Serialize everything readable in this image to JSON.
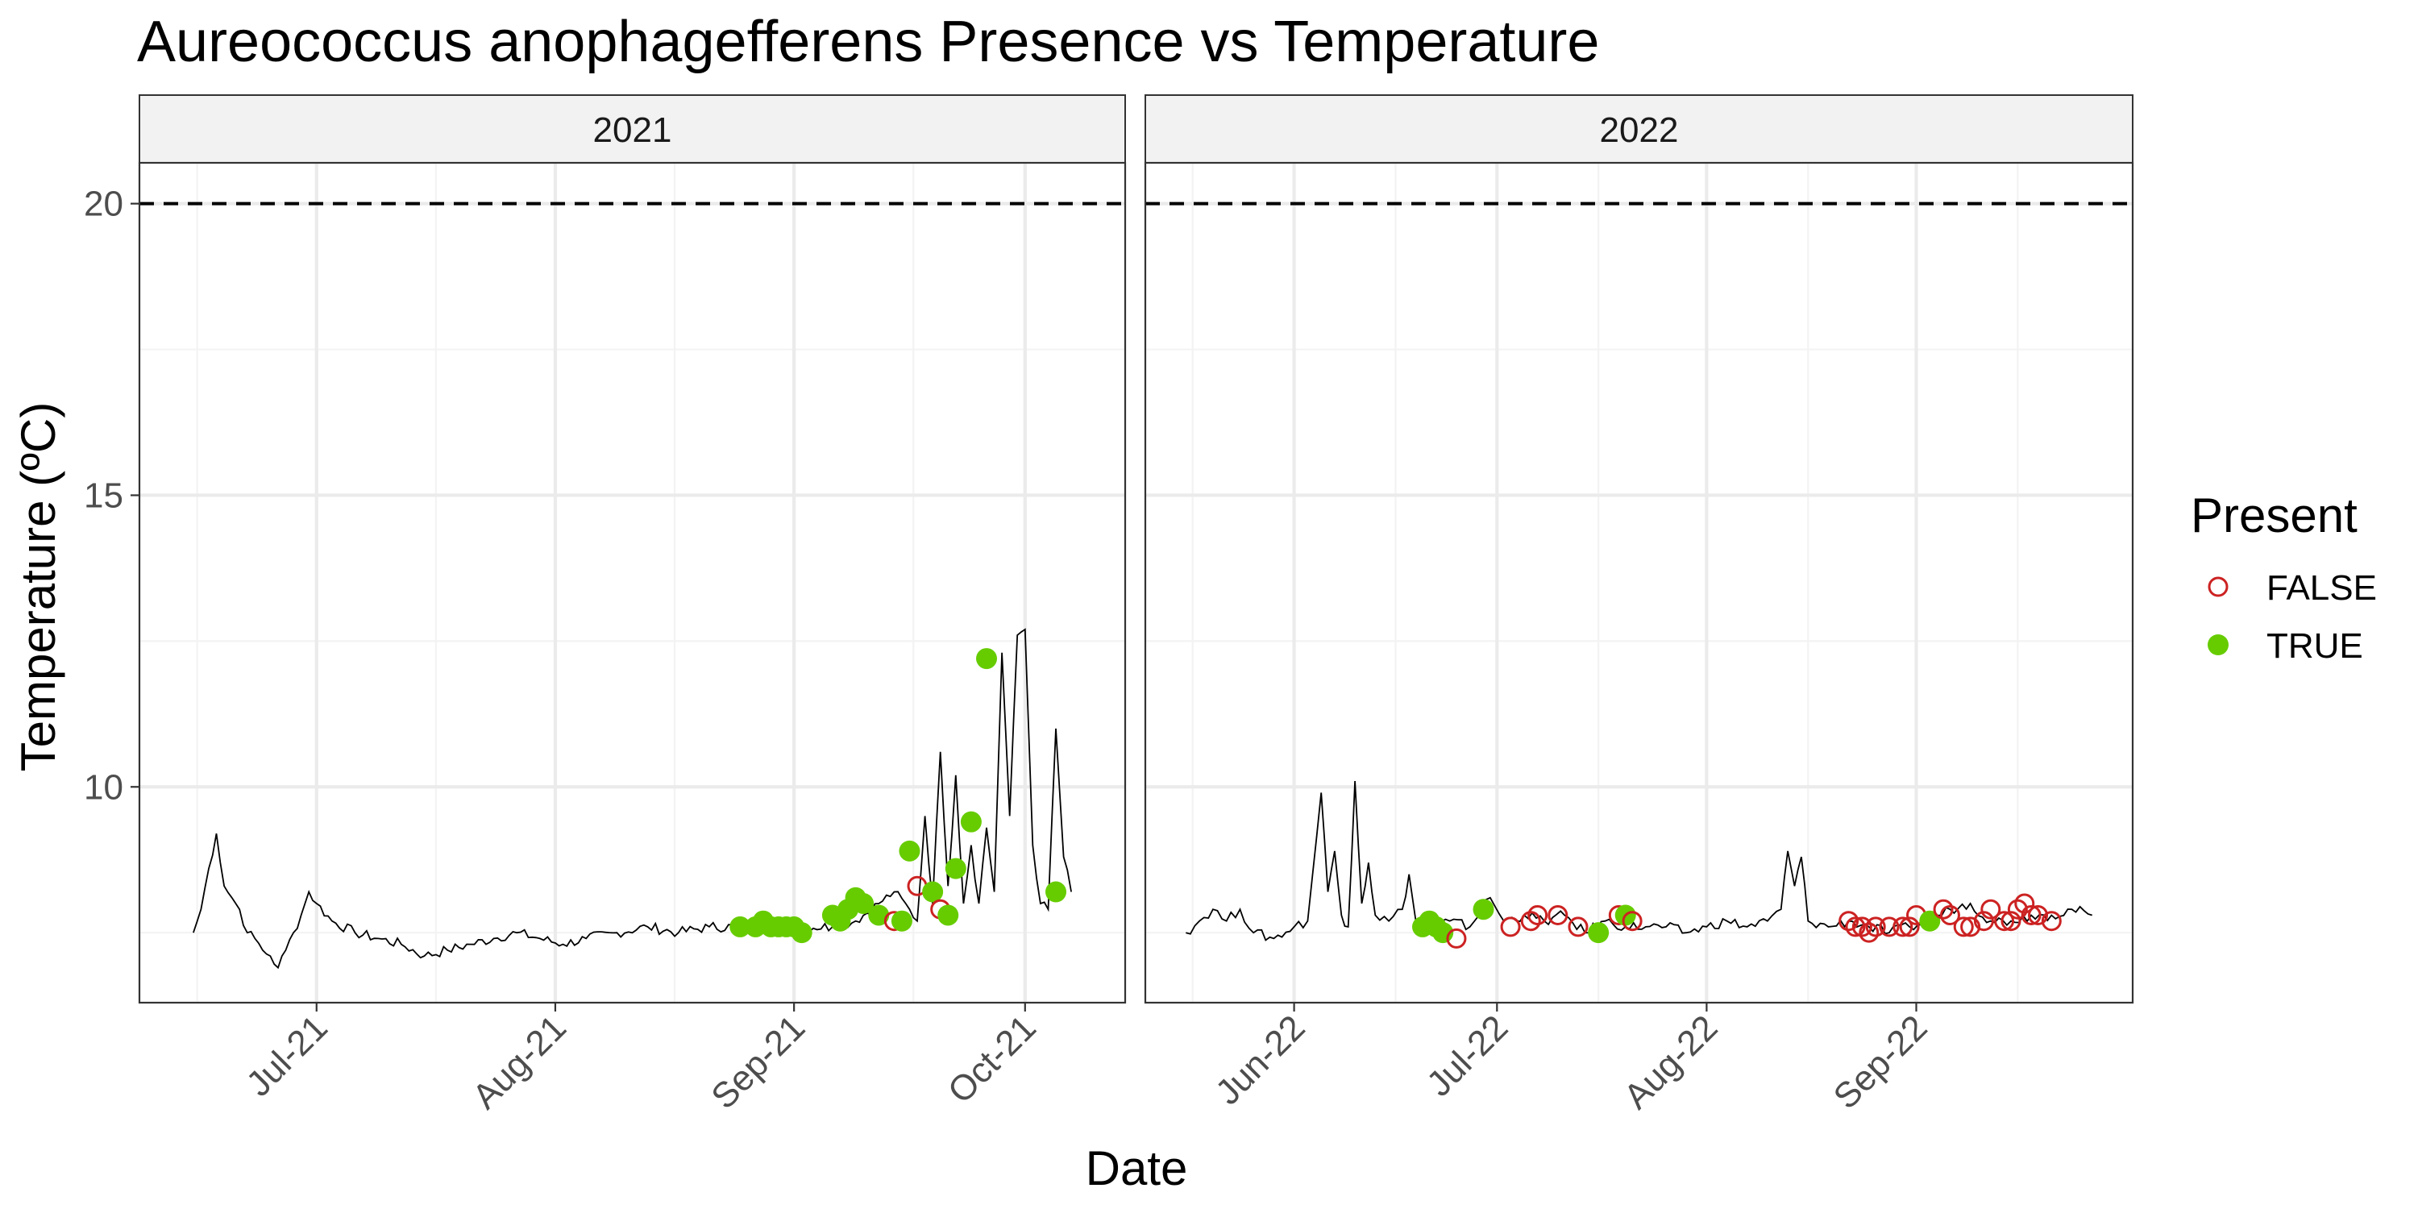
{
  "chart_data": {
    "type": "scatter",
    "title": "Aureococcus anophagefferens Presence vs Temperature",
    "xlabel": "Date",
    "ylabel": "Temperature (ºC)",
    "ylim": [
      6.3,
      20.7
    ],
    "y_ticks": [
      10,
      15,
      20
    ],
    "reference_line": {
      "y": 20,
      "style": "dashed"
    },
    "grid": true,
    "legend": {
      "title": "Present",
      "position": "right",
      "entries": [
        {
          "label": "FALSE",
          "color": "#cc2222",
          "marker": "open-circle"
        },
        {
          "label": "TRUE",
          "color": "#66cc00",
          "marker": "filled-circle"
        }
      ]
    },
    "colors": {
      "line": "#000000",
      "false": "#cc2222",
      "true": "#66cc00"
    },
    "panels": [
      {
        "strip": "2021",
        "xlim": [
          "2021-06-08",
          "2021-10-14"
        ],
        "x_ticks": [
          {
            "date": "2021-07-01",
            "label": "Jul-21"
          },
          {
            "date": "2021-08-01",
            "label": "Aug-21"
          },
          {
            "date": "2021-09-01",
            "label": "Sep-21"
          },
          {
            "date": "2021-10-01",
            "label": "Oct-21"
          }
        ],
        "temperature_line": [
          [
            "2021-06-15",
            7.5
          ],
          [
            "2021-06-16",
            7.9
          ],
          [
            "2021-06-17",
            8.6
          ],
          [
            "2021-06-18",
            9.2
          ],
          [
            "2021-06-19",
            8.3
          ],
          [
            "2021-06-20",
            8.1
          ],
          [
            "2021-06-21",
            7.9
          ],
          [
            "2021-06-22",
            7.5
          ],
          [
            "2021-06-23",
            7.4
          ],
          [
            "2021-06-24",
            7.2
          ],
          [
            "2021-06-25",
            7.1
          ],
          [
            "2021-06-26",
            6.9
          ],
          [
            "2021-06-27",
            7.2
          ],
          [
            "2021-06-28",
            7.5
          ],
          [
            "2021-06-29",
            7.8
          ],
          [
            "2021-06-30",
            8.2
          ],
          [
            "2021-07-01",
            8.0
          ],
          [
            "2021-07-03",
            7.7
          ],
          [
            "2021-07-06",
            7.5
          ],
          [
            "2021-07-09",
            7.4
          ],
          [
            "2021-07-12",
            7.3
          ],
          [
            "2021-07-15",
            7.1
          ],
          [
            "2021-07-18",
            7.2
          ],
          [
            "2021-07-21",
            7.3
          ],
          [
            "2021-07-24",
            7.4
          ],
          [
            "2021-07-27",
            7.5
          ],
          [
            "2021-07-30",
            7.4
          ],
          [
            "2021-08-02",
            7.3
          ],
          [
            "2021-08-05",
            7.4
          ],
          [
            "2021-08-09",
            7.5
          ],
          [
            "2021-08-13",
            7.6
          ],
          [
            "2021-08-17",
            7.5
          ],
          [
            "2021-08-21",
            7.6
          ],
          [
            "2021-08-25",
            7.6
          ],
          [
            "2021-08-29",
            7.6
          ],
          [
            "2021-09-02",
            7.6
          ],
          [
            "2021-09-06",
            7.6
          ],
          [
            "2021-09-09",
            7.7
          ],
          [
            "2021-09-12",
            8.0
          ],
          [
            "2021-09-14",
            8.2
          ],
          [
            "2021-09-16",
            7.9
          ],
          [
            "2021-09-17",
            7.7
          ],
          [
            "2021-09-18",
            9.5
          ],
          [
            "2021-09-19",
            8.0
          ],
          [
            "2021-09-20",
            10.6
          ],
          [
            "2021-09-21",
            8.3
          ],
          [
            "2021-09-22",
            10.2
          ],
          [
            "2021-09-23",
            8.0
          ],
          [
            "2021-09-24",
            9.0
          ],
          [
            "2021-09-25",
            8.0
          ],
          [
            "2021-09-26",
            9.3
          ],
          [
            "2021-09-27",
            8.2
          ],
          [
            "2021-09-28",
            12.3
          ],
          [
            "2021-09-29",
            9.5
          ],
          [
            "2021-09-30",
            12.6
          ],
          [
            "2021-10-01",
            12.7
          ],
          [
            "2021-10-02",
            9.0
          ],
          [
            "2021-10-03",
            8.0
          ],
          [
            "2021-10-04",
            7.9
          ],
          [
            "2021-10-05",
            11.0
          ],
          [
            "2021-10-06",
            8.8
          ],
          [
            "2021-10-07",
            8.2
          ]
        ],
        "points": [
          {
            "date": "2021-08-25",
            "temp": 7.6,
            "present": true
          },
          {
            "date": "2021-08-27",
            "temp": 7.6,
            "present": true
          },
          {
            "date": "2021-08-28",
            "temp": 7.7,
            "present": true
          },
          {
            "date": "2021-08-29",
            "temp": 7.6,
            "present": true
          },
          {
            "date": "2021-08-30",
            "temp": 7.6,
            "present": true
          },
          {
            "date": "2021-08-31",
            "temp": 7.6,
            "present": true
          },
          {
            "date": "2021-09-01",
            "temp": 7.6,
            "present": true
          },
          {
            "date": "2021-09-02",
            "temp": 7.5,
            "present": true
          },
          {
            "date": "2021-09-06",
            "temp": 7.8,
            "present": true
          },
          {
            "date": "2021-09-07",
            "temp": 7.7,
            "present": true
          },
          {
            "date": "2021-09-08",
            "temp": 7.9,
            "present": true
          },
          {
            "date": "2021-09-09",
            "temp": 8.1,
            "present": true
          },
          {
            "date": "2021-09-10",
            "temp": 8.0,
            "present": true
          },
          {
            "date": "2021-09-12",
            "temp": 7.8,
            "present": true
          },
          {
            "date": "2021-09-14",
            "temp": 7.7,
            "present": false
          },
          {
            "date": "2021-09-15",
            "temp": 7.7,
            "present": true
          },
          {
            "date": "2021-09-16",
            "temp": 8.9,
            "present": true
          },
          {
            "date": "2021-09-17",
            "temp": 8.3,
            "present": false
          },
          {
            "date": "2021-09-19",
            "temp": 8.2,
            "present": true
          },
          {
            "date": "2021-09-20",
            "temp": 7.9,
            "present": false
          },
          {
            "date": "2021-09-21",
            "temp": 7.8,
            "present": true
          },
          {
            "date": "2021-09-22",
            "temp": 8.6,
            "present": true
          },
          {
            "date": "2021-09-24",
            "temp": 9.4,
            "present": true
          },
          {
            "date": "2021-09-26",
            "temp": 12.2,
            "present": true
          },
          {
            "date": "2021-10-05",
            "temp": 8.2,
            "present": true
          }
        ]
      },
      {
        "strip": "2022",
        "xlim": [
          "2022-05-10",
          "2022-10-03"
        ],
        "x_ticks": [
          {
            "date": "2022-06-01",
            "label": "Jun-22"
          },
          {
            "date": "2022-07-01",
            "label": "Jul-22"
          },
          {
            "date": "2022-08-01",
            "label": "Aug-22"
          },
          {
            "date": "2022-09-01",
            "label": "Sep-22"
          }
        ],
        "temperature_line": [
          [
            "2022-05-16",
            7.5
          ],
          [
            "2022-05-18",
            7.7
          ],
          [
            "2022-05-20",
            7.9
          ],
          [
            "2022-05-22",
            7.7
          ],
          [
            "2022-05-24",
            7.9
          ],
          [
            "2022-05-26",
            7.5
          ],
          [
            "2022-05-29",
            7.4
          ],
          [
            "2022-06-01",
            7.6
          ],
          [
            "2022-06-03",
            7.7
          ],
          [
            "2022-06-05",
            9.9
          ],
          [
            "2022-06-06",
            8.2
          ],
          [
            "2022-06-07",
            8.9
          ],
          [
            "2022-06-08",
            7.8
          ],
          [
            "2022-06-09",
            7.6
          ],
          [
            "2022-06-10",
            10.1
          ],
          [
            "2022-06-11",
            8.0
          ],
          [
            "2022-06-12",
            8.7
          ],
          [
            "2022-06-13",
            7.8
          ],
          [
            "2022-06-15",
            7.7
          ],
          [
            "2022-06-17",
            7.9
          ],
          [
            "2022-06-18",
            8.5
          ],
          [
            "2022-06-19",
            7.7
          ],
          [
            "2022-06-21",
            7.6
          ],
          [
            "2022-06-24",
            7.7
          ],
          [
            "2022-06-27",
            7.6
          ],
          [
            "2022-06-30",
            8.1
          ],
          [
            "2022-07-02",
            7.7
          ],
          [
            "2022-07-05",
            7.8
          ],
          [
            "2022-07-08",
            7.7
          ],
          [
            "2022-07-11",
            7.8
          ],
          [
            "2022-07-14",
            7.5
          ],
          [
            "2022-07-17",
            7.7
          ],
          [
            "2022-07-20",
            7.6
          ],
          [
            "2022-07-23",
            7.6
          ],
          [
            "2022-07-26",
            7.6
          ],
          [
            "2022-07-29",
            7.5
          ],
          [
            "2022-08-01",
            7.6
          ],
          [
            "2022-08-04",
            7.7
          ],
          [
            "2022-08-07",
            7.6
          ],
          [
            "2022-08-10",
            7.7
          ],
          [
            "2022-08-12",
            7.9
          ],
          [
            "2022-08-13",
            8.9
          ],
          [
            "2022-08-14",
            8.3
          ],
          [
            "2022-08-15",
            8.8
          ],
          [
            "2022-08-16",
            7.7
          ],
          [
            "2022-08-19",
            7.6
          ],
          [
            "2022-08-22",
            7.7
          ],
          [
            "2022-08-25",
            7.6
          ],
          [
            "2022-08-28",
            7.5
          ],
          [
            "2022-08-31",
            7.6
          ],
          [
            "2022-09-03",
            7.7
          ],
          [
            "2022-09-06",
            7.9
          ],
          [
            "2022-09-09",
            8.0
          ],
          [
            "2022-09-12",
            7.7
          ],
          [
            "2022-09-15",
            7.7
          ],
          [
            "2022-09-18",
            7.8
          ],
          [
            "2022-09-21",
            7.8
          ],
          [
            "2022-09-24",
            7.9
          ],
          [
            "2022-09-27",
            7.8
          ]
        ],
        "points": [
          {
            "date": "2022-06-20",
            "temp": 7.6,
            "present": true
          },
          {
            "date": "2022-06-21",
            "temp": 7.7,
            "present": true
          },
          {
            "date": "2022-06-22",
            "temp": 7.6,
            "present": true
          },
          {
            "date": "2022-06-23",
            "temp": 7.5,
            "present": true
          },
          {
            "date": "2022-06-25",
            "temp": 7.4,
            "present": false
          },
          {
            "date": "2022-06-29",
            "temp": 7.9,
            "present": true
          },
          {
            "date": "2022-07-03",
            "temp": 7.6,
            "present": false
          },
          {
            "date": "2022-07-06",
            "temp": 7.7,
            "present": false
          },
          {
            "date": "2022-07-07",
            "temp": 7.8,
            "present": false
          },
          {
            "date": "2022-07-10",
            "temp": 7.8,
            "present": false
          },
          {
            "date": "2022-07-13",
            "temp": 7.6,
            "present": false
          },
          {
            "date": "2022-07-16",
            "temp": 7.5,
            "present": true
          },
          {
            "date": "2022-07-19",
            "temp": 7.8,
            "present": false
          },
          {
            "date": "2022-07-20",
            "temp": 7.8,
            "present": true
          },
          {
            "date": "2022-07-21",
            "temp": 7.7,
            "present": false
          },
          {
            "date": "2022-08-22",
            "temp": 7.7,
            "present": false
          },
          {
            "date": "2022-08-23",
            "temp": 7.6,
            "present": false
          },
          {
            "date": "2022-08-24",
            "temp": 7.6,
            "present": false
          },
          {
            "date": "2022-08-25",
            "temp": 7.5,
            "present": false
          },
          {
            "date": "2022-08-26",
            "temp": 7.6,
            "present": false
          },
          {
            "date": "2022-08-28",
            "temp": 7.6,
            "present": false
          },
          {
            "date": "2022-08-30",
            "temp": 7.6,
            "present": false
          },
          {
            "date": "2022-08-31",
            "temp": 7.6,
            "present": false
          },
          {
            "date": "2022-09-01",
            "temp": 7.8,
            "present": false
          },
          {
            "date": "2022-09-03",
            "temp": 7.7,
            "present": true
          },
          {
            "date": "2022-09-05",
            "temp": 7.9,
            "present": false
          },
          {
            "date": "2022-09-06",
            "temp": 7.8,
            "present": false
          },
          {
            "date": "2022-09-08",
            "temp": 7.6,
            "present": false
          },
          {
            "date": "2022-09-09",
            "temp": 7.6,
            "present": false
          },
          {
            "date": "2022-09-11",
            "temp": 7.7,
            "present": false
          },
          {
            "date": "2022-09-12",
            "temp": 7.9,
            "present": false
          },
          {
            "date": "2022-09-14",
            "temp": 7.7,
            "present": false
          },
          {
            "date": "2022-09-15",
            "temp": 7.7,
            "present": false
          },
          {
            "date": "2022-09-16",
            "temp": 7.9,
            "present": false
          },
          {
            "date": "2022-09-17",
            "temp": 8.0,
            "present": false
          },
          {
            "date": "2022-09-18",
            "temp": 7.8,
            "present": false
          },
          {
            "date": "2022-09-19",
            "temp": 7.8,
            "present": false
          },
          {
            "date": "2022-09-21",
            "temp": 7.7,
            "present": false
          }
        ]
      }
    ]
  }
}
